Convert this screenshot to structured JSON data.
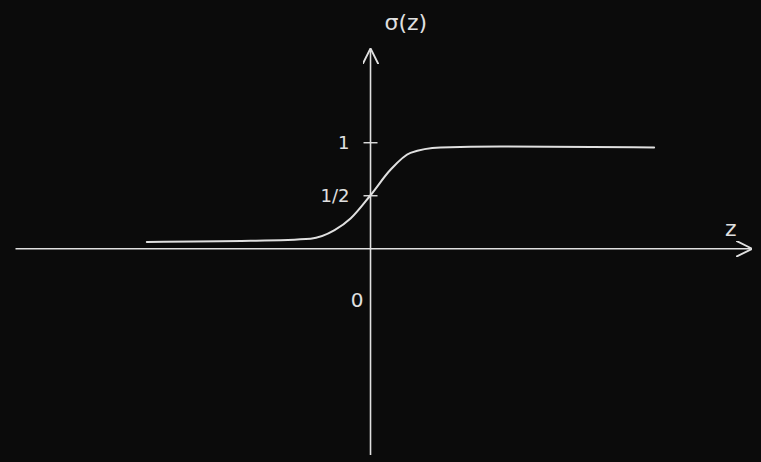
{
  "chart_data": {
    "type": "line",
    "x": [
      -5.6,
      -3,
      -1.5,
      -0.9,
      -0.5,
      0,
      0.5,
      1,
      1.75,
      3.25,
      7.1
    ],
    "values": [
      0.06,
      0.07,
      0.09,
      0.17,
      0.28,
      0.5,
      0.74,
      0.9,
      0.95,
      0.96,
      0.95
    ],
    "xlabel": "z",
    "ylabel": "σ(z)",
    "xlim": [
      -8.9,
      9.5
    ],
    "ylim": [
      -1.95,
      1.87
    ],
    "xticks": [
      0
    ],
    "yticks": [
      {
        "value": 0.5,
        "label": "1/2"
      },
      1
    ],
    "color": "#e0e0e0",
    "grid": false
  }
}
